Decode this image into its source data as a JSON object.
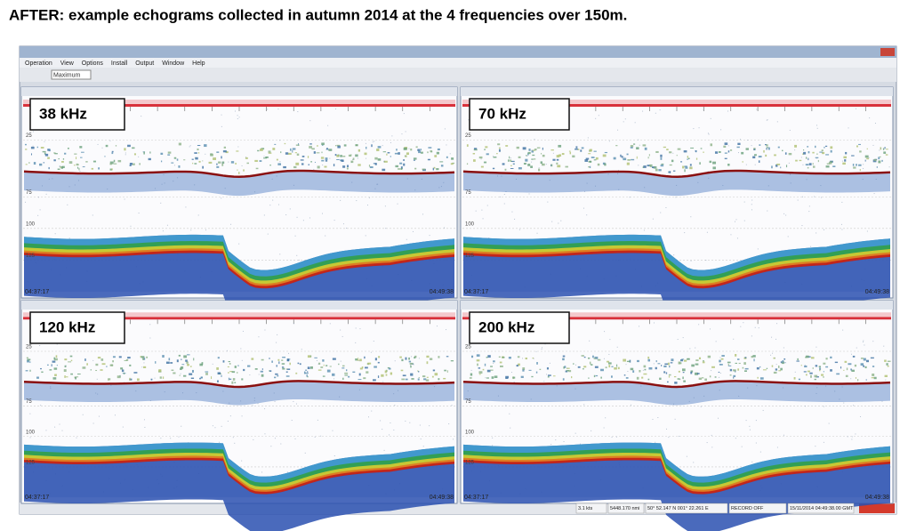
{
  "title": "AFTER: example echograms collected in autumn 2014 at the 4 frequencies over 150m.",
  "window": {
    "menu": [
      "Operation",
      "View",
      "Options",
      "Install",
      "Output",
      "Window",
      "Help"
    ],
    "toolbar_select": "Maximum",
    "panels": [
      {
        "label": "38 kHz",
        "depth_labels": [
          "25",
          "75",
          "100",
          "125"
        ],
        "start_time": "04:37:17",
        "end_time": "04:49:38"
      },
      {
        "label": "70 kHz",
        "depth_labels": [
          "25",
          "75",
          "100",
          "125"
        ],
        "start_time": "04:37:17",
        "end_time": "04:49:38"
      },
      {
        "label": "120 kHz",
        "depth_labels": [
          "25",
          "75",
          "100",
          "125"
        ],
        "start_time": "04:37:17",
        "end_time": "04:49:38"
      },
      {
        "label": "200 kHz",
        "depth_labels": [
          "25",
          "75",
          "100",
          "125"
        ],
        "start_time": "04:37:17",
        "end_time": "04:49:38"
      }
    ],
    "status": [
      "3.1 kts",
      "5448.170 nmi",
      "50° 52.147 N 001° 22.261 E",
      "RECORD OFF",
      "15/11/2014 04:49:38.00 GMT"
    ]
  }
}
